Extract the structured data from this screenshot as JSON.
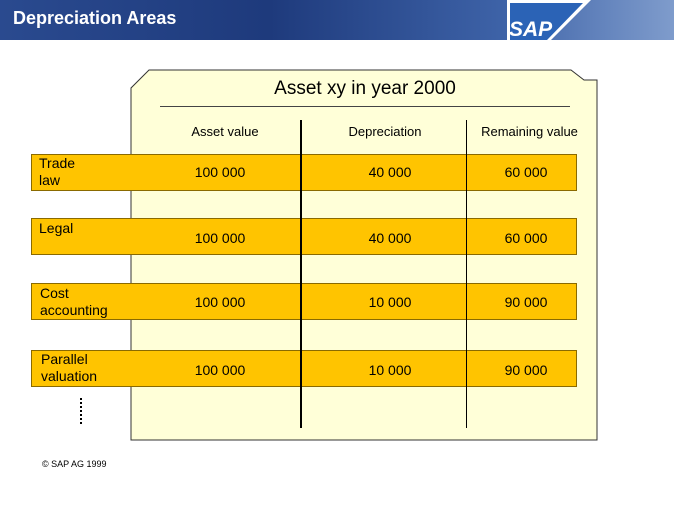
{
  "header": {
    "title": "Depreciation Areas",
    "logo_text": "SAP"
  },
  "card": {
    "title": "Asset xy in year 2000",
    "columns": [
      "Asset value",
      "Depreciation",
      "Remaining value"
    ]
  },
  "rows": [
    {
      "label_line1": "Trade",
      "label_line2": "law",
      "asset_value": "100 000",
      "depreciation": "40 000",
      "remaining": "60 000"
    },
    {
      "label_line1": "Legal",
      "label_line2": "",
      "asset_value": "100 000",
      "depreciation": "40 000",
      "remaining": "60 000"
    },
    {
      "label_line1": "Cost",
      "label_line2": "accounting",
      "asset_value": "100 000",
      "depreciation": "10 000",
      "remaining": "90 000"
    },
    {
      "label_line1": "Parallel",
      "label_line2": "valuation",
      "asset_value": "100 000",
      "depreciation": "10 000",
      "remaining": "90 000"
    }
  ],
  "footer": {
    "copyright": "© SAP AG 1999"
  },
  "colors": {
    "header_blue": "#1e3a7c",
    "bar_yellow": "#ffc400",
    "card_cream": "#ffffd8"
  }
}
